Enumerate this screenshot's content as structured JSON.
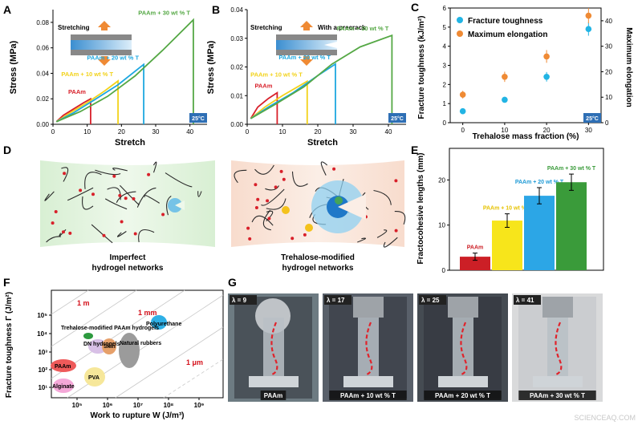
{
  "panels": {
    "A": {
      "letter": "A",
      "xlabel": "Stretch",
      "ylabel": "Stress (MPa)",
      "xticks": [
        "0",
        "10",
        "20",
        "30",
        "40"
      ],
      "yticks": [
        "0.00",
        "0.02",
        "0.04",
        "0.06",
        "0.08"
      ],
      "inset_label": "Stretching",
      "temp_badge": "25°C",
      "series": [
        {
          "name": "PAAm",
          "color": "#d8202a",
          "x": [
            1,
            3,
            6,
            9,
            11
          ],
          "y": [
            0.002,
            0.007,
            0.012,
            0.017,
            0.02
          ]
        },
        {
          "name": "PAAm + 10 wt % T",
          "color": "#f2d21a",
          "x": [
            1,
            5,
            10,
            15,
            19
          ],
          "y": [
            0.002,
            0.009,
            0.017,
            0.026,
            0.034
          ]
        },
        {
          "name": "PAAm + 20 wt % T",
          "color": "#1da7e0",
          "x": [
            1,
            6,
            12,
            19,
            26.5
          ],
          "y": [
            0.002,
            0.009,
            0.019,
            0.031,
            0.047
          ]
        },
        {
          "name": "PAAm + 30 wt % T",
          "color": "#55a845",
          "x": [
            1,
            8,
            16,
            24,
            32,
            41
          ],
          "y": [
            0.002,
            0.01,
            0.022,
            0.038,
            0.058,
            0.082
          ]
        }
      ]
    },
    "B": {
      "letter": "B",
      "xlabel": "Stretch",
      "ylabel": "Stress (MPa)",
      "xticks": [
        "0",
        "10",
        "20",
        "30",
        "40"
      ],
      "yticks": [
        "0.00",
        "0.01",
        "0.02",
        "0.03",
        "0.04"
      ],
      "inset_label": "Stretching",
      "inset_label2": "With a precrack",
      "temp_badge": "25°C",
      "series": [
        {
          "name": "PAAm",
          "color": "#d8202a",
          "x": [
            1,
            3,
            6,
            8.5
          ],
          "y": [
            0.002,
            0.006,
            0.009,
            0.011
          ]
        },
        {
          "name": "PAAm + 10 wt % T",
          "color": "#f2d21a",
          "x": [
            1,
            5,
            10,
            17
          ],
          "y": [
            0.002,
            0.006,
            0.01,
            0.015
          ]
        },
        {
          "name": "PAAm + 20 wt % T",
          "color": "#1da7e0",
          "x": [
            1,
            6,
            13,
            20,
            25
          ],
          "y": [
            0.002,
            0.006,
            0.011,
            0.017,
            0.021
          ]
        },
        {
          "name": "PAAm + 30 wt % T",
          "color": "#55a845",
          "x": [
            1,
            8,
            16,
            24,
            32,
            41
          ],
          "y": [
            0.002,
            0.007,
            0.013,
            0.021,
            0.027,
            0.031
          ]
        }
      ]
    },
    "C": {
      "letter": "C",
      "xlabel": "Trehalose mass fraction (%)",
      "ylabel_left": "Fracture toughness (kJ/m²)",
      "ylabel_right": "Maximum elongation",
      "xticks": [
        "0",
        "10",
        "20",
        "30"
      ],
      "yticks_left": [
        "0",
        "1",
        "2",
        "3",
        "4",
        "5",
        "6"
      ],
      "yticks_right": [
        "0",
        "10",
        "20",
        "30",
        "40"
      ],
      "legend": [
        "Fracture toughness",
        "Maximum elongation"
      ],
      "temp_badge": "25°C",
      "toughness": {
        "color": "#22b4e4",
        "x": [
          0,
          10,
          20,
          30
        ],
        "y": [
          0.6,
          1.2,
          2.4,
          4.9
        ],
        "err": [
          0.1,
          0.15,
          0.25,
          0.35
        ]
      },
      "elongation": {
        "color": "#ef8a34",
        "x": [
          0,
          10,
          20,
          30
        ],
        "y": [
          11,
          18,
          26,
          42
        ],
        "err": [
          1.5,
          2,
          2.5,
          3
        ]
      }
    },
    "D": {
      "letter": "D",
      "caption_left_1": "Imperfect",
      "caption_left_2": "hydrogel networks",
      "caption_right_1": "Trehalose-modified",
      "caption_right_2": "hydrogel networks"
    },
    "E": {
      "letter": "E",
      "ylabel": "Fractocohesive lengths (mm)",
      "yticks": [
        "0",
        "10",
        "20"
      ],
      "bars": [
        {
          "name": "PAAm",
          "value": 3.0,
          "err": 0.8,
          "color": "#cc1f26",
          "label_color": "#cc1f26"
        },
        {
          "name": "PAAm + 10 wt % T",
          "value": 11.0,
          "err": 1.5,
          "color": "#f7e51b",
          "label_color": "#e6c200"
        },
        {
          "name": "PAAm + 20 wt % T",
          "value": 16.5,
          "err": 1.8,
          "color": "#2ca6e6",
          "label_color": "#1e9ad6"
        },
        {
          "name": "PAAm + 30 wt % T",
          "value": 19.5,
          "err": 1.8,
          "color": "#3a9b3a",
          "label_color": "#3a9b3a"
        }
      ]
    },
    "F": {
      "letter": "F",
      "xlabel": "Work to rupture W (J/m³)",
      "ylabel": "Fracture toughness Γ (J/m²)",
      "xticks": [
        "10⁵",
        "10⁶",
        "10⁷",
        "10⁸",
        "10⁹"
      ],
      "yticks": [
        "10¹",
        "10²",
        "10³",
        "10⁴",
        "10⁵"
      ],
      "line_labels": [
        "1 m",
        "1 mm",
        "1 μm"
      ],
      "materials": [
        {
          "name": "Trehalose-modified PAAm hydrogels",
          "color": "#2d9a3f"
        },
        {
          "name": "DN hydrogels",
          "color": "#d8c0e6"
        },
        {
          "name": "Skin",
          "color": "#e6a06a"
        },
        {
          "name": "Natural rubbers",
          "color": "#9b9b9b"
        },
        {
          "name": "Polyurethane",
          "color": "#2fb0e6"
        },
        {
          "name": "PAAm",
          "color": "#ee5a5a"
        },
        {
          "name": "PVA",
          "color": "#f6e79a"
        },
        {
          "name": "Alginate",
          "color": "#f4a8d8"
        }
      ]
    },
    "G": {
      "letter": "G",
      "photos": [
        {
          "lambda": "λ = 9",
          "caption": "PAAm"
        },
        {
          "lambda": "λ = 17",
          "caption": "PAAm + 10 wt % T"
        },
        {
          "lambda": "λ = 25",
          "caption": "PAAm + 20 wt % T"
        },
        {
          "lambda": "λ = 41",
          "caption": "PAAm + 30 wt % T"
        }
      ]
    }
  },
  "watermark": "SCIENCEAQ.COM",
  "chart_data": [
    {
      "type": "line",
      "panel": "A",
      "xlabel": "Stretch",
      "ylabel": "Stress (MPa)",
      "xlim": [
        0,
        45
      ],
      "ylim": [
        0,
        0.09
      ],
      "series": [
        {
          "name": "PAAm",
          "x": [
            1,
            3,
            6,
            9,
            11
          ],
          "y": [
            0.002,
            0.007,
            0.012,
            0.017,
            0.02
          ]
        },
        {
          "name": "PAAm + 10 wt % T",
          "x": [
            1,
            5,
            10,
            15,
            19
          ],
          "y": [
            0.002,
            0.009,
            0.017,
            0.026,
            0.034
          ]
        },
        {
          "name": "PAAm + 20 wt % T",
          "x": [
            1,
            6,
            12,
            19,
            26.5
          ],
          "y": [
            0.002,
            0.009,
            0.019,
            0.031,
            0.047
          ]
        },
        {
          "name": "PAAm + 30 wt % T",
          "x": [
            1,
            8,
            16,
            24,
            32,
            41
          ],
          "y": [
            0.002,
            0.01,
            0.022,
            0.038,
            0.058,
            0.082
          ]
        }
      ]
    },
    {
      "type": "line",
      "panel": "B",
      "xlabel": "Stretch",
      "ylabel": "Stress (MPa)",
      "xlim": [
        0,
        45
      ],
      "ylim": [
        0,
        0.04
      ],
      "series": [
        {
          "name": "PAAm",
          "x": [
            1,
            3,
            6,
            8.5
          ],
          "y": [
            0.002,
            0.006,
            0.009,
            0.011
          ]
        },
        {
          "name": "PAAm + 10 wt % T",
          "x": [
            1,
            5,
            10,
            17
          ],
          "y": [
            0.002,
            0.006,
            0.01,
            0.015
          ]
        },
        {
          "name": "PAAm + 20 wt % T",
          "x": [
            1,
            6,
            13,
            20,
            25
          ],
          "y": [
            0.002,
            0.006,
            0.011,
            0.017,
            0.021
          ]
        },
        {
          "name": "PAAm + 30 wt % T",
          "x": [
            1,
            8,
            16,
            24,
            32,
            41
          ],
          "y": [
            0.002,
            0.007,
            0.013,
            0.021,
            0.027,
            0.031
          ]
        }
      ]
    },
    {
      "type": "scatter",
      "panel": "C",
      "xlabel": "Trehalose mass fraction (%)",
      "ylabel": "Fracture toughness (kJ/m²)",
      "ylabel_right": "Maximum elongation",
      "xlim": [
        -3,
        33
      ],
      "ylim": [
        0,
        6
      ],
      "ylim_right": [
        0,
        45
      ],
      "series": [
        {
          "name": "Fracture toughness",
          "x": [
            0,
            10,
            20,
            30
          ],
          "y": [
            0.6,
            1.2,
            2.4,
            4.9
          ]
        },
        {
          "name": "Maximum elongation",
          "x": [
            0,
            10,
            20,
            30
          ],
          "y": [
            11,
            18,
            26,
            42
          ]
        }
      ]
    },
    {
      "type": "bar",
      "panel": "E",
      "ylabel": "Fractocohesive lengths (mm)",
      "categories": [
        "PAAm",
        "PAAm + 10 wt % T",
        "PAAm + 20 wt % T",
        "PAAm + 30 wt % T"
      ],
      "values": [
        3.0,
        11.0,
        16.5,
        19.5
      ],
      "ylim": [
        0,
        25
      ]
    }
  ]
}
